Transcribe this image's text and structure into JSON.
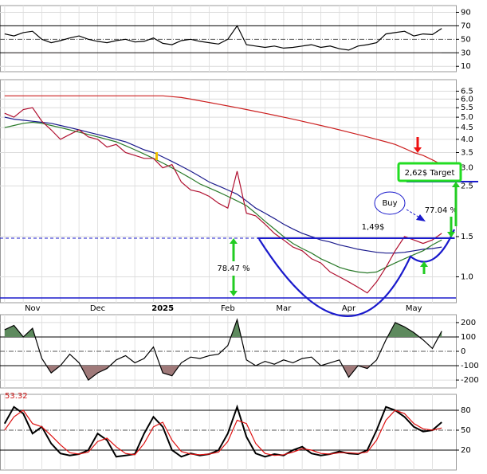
{
  "chart_data": [
    {
      "type": "line",
      "ylim": [
        2,
        100
      ],
      "yticks": [
        90,
        70,
        50,
        30,
        10
      ],
      "series": [
        {
          "color": "#000000",
          "values": [
            58,
            55,
            60,
            62,
            50,
            45,
            48,
            52,
            55,
            50,
            47,
            45,
            48,
            50,
            46,
            47,
            52,
            44,
            42,
            48,
            50,
            47,
            45,
            43,
            50,
            70,
            42,
            40,
            38,
            40,
            37,
            38,
            40,
            42,
            38,
            40,
            36,
            34,
            40,
            42,
            45,
            58,
            60,
            62,
            55,
            58,
            57,
            66
          ]
        }
      ],
      "fill_below": {
        "color": "#a07a7a"
      }
    },
    {
      "type": "line",
      "log_scale": true,
      "ylim": [
        0.77,
        7.3
      ],
      "yticks": [
        6.5,
        {
          "value": 6,
          "label": "6.0"
        },
        5.5,
        {
          "value": 5,
          "label": "5.0"
        },
        4.5,
        {
          "value": 4,
          "label": "4.0"
        },
        3.5,
        {
          "value": 3,
          "label": "3.0"
        },
        2.5,
        1.5,
        {
          "value": 1,
          "label": "1.0"
        }
      ],
      "categories": [
        null,
        null,
        null,
        "Nov",
        null,
        null,
        null,
        null,
        null,
        null,
        "Dec",
        null,
        null,
        null,
        null,
        null,
        null,
        "2025",
        null,
        null,
        null,
        null,
        null,
        null,
        "Feb",
        null,
        null,
        null,
        null,
        null,
        "Mar",
        null,
        null,
        null,
        null,
        null,
        null,
        "Apr",
        null,
        null,
        null,
        null,
        null,
        null,
        "May",
        null,
        null,
        null
      ],
      "series": [
        {
          "color": "#cc2020",
          "values": [
            6.2,
            6.2,
            6.2,
            6.2,
            6.2,
            6.2,
            6.2,
            6.2,
            6.2,
            6.2,
            6.2,
            6.2,
            6.2,
            6.2,
            6.2,
            6.2,
            6.2,
            6.2,
            6.15,
            6.1,
            6.0,
            5.9,
            5.8,
            5.7,
            5.6,
            5.5,
            5.4,
            5.3,
            5.2,
            5.1,
            5.0,
            4.9,
            4.8,
            4.7,
            4.6,
            4.5,
            4.4,
            4.3,
            4.2,
            4.1,
            4.0,
            3.9,
            3.8,
            3.65,
            3.5,
            3.4,
            3.25,
            3.1
          ]
        },
        {
          "color": "#1a1a8c",
          "values": [
            5.0,
            4.9,
            4.85,
            4.8,
            4.75,
            4.7,
            4.6,
            4.5,
            4.4,
            4.3,
            4.2,
            4.1,
            4.0,
            3.9,
            3.75,
            3.6,
            3.5,
            3.35,
            3.2,
            3.05,
            2.9,
            2.75,
            2.6,
            2.5,
            2.4,
            2.3,
            2.15,
            2.0,
            1.9,
            1.8,
            1.7,
            1.62,
            1.55,
            1.5,
            1.45,
            1.42,
            1.38,
            1.35,
            1.32,
            1.3,
            1.28,
            1.27,
            1.27,
            1.28,
            1.3,
            1.32,
            1.33,
            1.35
          ]
        },
        {
          "color": "#2a7a2a",
          "values": [
            4.5,
            4.6,
            4.7,
            4.75,
            4.7,
            4.6,
            4.5,
            4.4,
            4.3,
            4.2,
            4.1,
            4.0,
            3.9,
            3.75,
            3.6,
            3.45,
            3.3,
            3.15,
            3.0,
            2.85,
            2.7,
            2.55,
            2.45,
            2.35,
            2.25,
            2.15,
            2.05,
            1.9,
            1.75,
            1.62,
            1.5,
            1.4,
            1.33,
            1.27,
            1.2,
            1.15,
            1.1,
            1.07,
            1.05,
            1.04,
            1.05,
            1.1,
            1.15,
            1.2,
            1.25,
            1.3,
            1.38,
            1.45
          ]
        },
        {
          "color": "#b01030",
          "values": [
            5.2,
            5.0,
            5.4,
            5.5,
            4.8,
            4.4,
            4.0,
            4.2,
            4.4,
            4.1,
            4.0,
            3.7,
            3.8,
            3.5,
            3.4,
            3.3,
            3.3,
            3.0,
            3.1,
            2.6,
            2.4,
            2.35,
            2.25,
            2.1,
            2.0,
            2.9,
            1.9,
            1.85,
            1.7,
            1.55,
            1.45,
            1.35,
            1.3,
            1.2,
            1.15,
            1.05,
            1.0,
            0.95,
            0.9,
            0.85,
            0.95,
            1.1,
            1.3,
            1.5,
            1.45,
            1.4,
            1.45,
            1.55
          ]
        }
      ],
      "annotations": [
        "2,62$ Target",
        "Buy",
        "1,49$",
        "77.04 %",
        "78.47 %"
      ]
    },
    {
      "type": "line",
      "ylim": [
        -255,
        255
      ],
      "yticks": [
        200,
        100,
        0,
        -100,
        -200
      ],
      "series": [
        {
          "color": "#000000",
          "values": [
            150,
            180,
            100,
            160,
            -50,
            -150,
            -100,
            -20,
            -80,
            -200,
            -150,
            -120,
            -60,
            -30,
            -80,
            -50,
            30,
            -150,
            -170,
            -80,
            -40,
            -50,
            -30,
            -20,
            40,
            220,
            -60,
            -100,
            -70,
            -90,
            -60,
            -80,
            -50,
            -40,
            -100,
            -80,
            -60,
            -180,
            -100,
            -120,
            -60,
            80,
            200,
            170,
            130,
            80,
            20,
            140
          ]
        }
      ],
      "fill_above": {
        "color": "#5e8a5e"
      },
      "fill_below": {
        "color": "#a07a7a"
      }
    },
    {
      "type": "line",
      "ylim": [
        -10,
        104
      ],
      "yticks": [
        80,
        50,
        20
      ],
      "last_value": 53.32,
      "series": [
        {
          "color": "#000000",
          "values": [
            60,
            85,
            75,
            45,
            55,
            30,
            15,
            12,
            14,
            20,
            45,
            35,
            10,
            12,
            14,
            45,
            70,
            55,
            20,
            10,
            15,
            12,
            14,
            20,
            45,
            85,
            40,
            15,
            10,
            14,
            12,
            20,
            25,
            15,
            12,
            14,
            18,
            15,
            14,
            20,
            50,
            85,
            80,
            70,
            55,
            48,
            50,
            62
          ]
        },
        {
          "color": "#dd1111",
          "values": [
            50,
            70,
            80,
            60,
            55,
            42,
            28,
            16,
            14,
            17,
            33,
            38,
            25,
            15,
            13,
            30,
            55,
            62,
            35,
            18,
            14,
            13,
            14,
            17,
            33,
            65,
            60,
            30,
            15,
            12,
            13,
            17,
            22,
            20,
            15,
            14,
            16,
            16,
            15,
            17,
            35,
            65,
            80,
            75,
            60,
            52,
            50,
            53.32
          ]
        }
      ]
    }
  ]
}
